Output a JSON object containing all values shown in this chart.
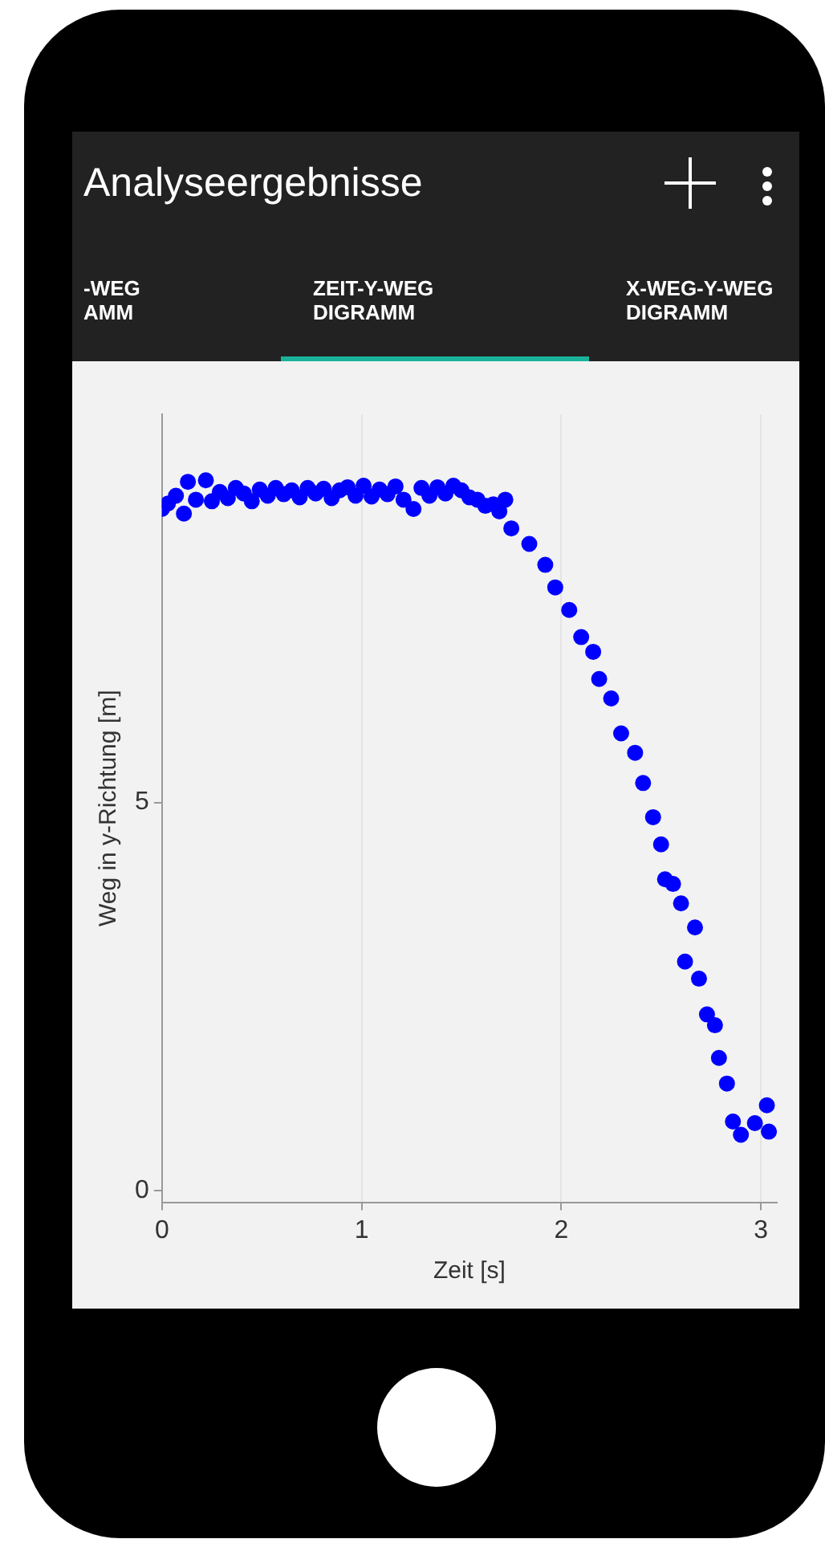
{
  "chart_data": {
    "type": "scatter",
    "title": "Analyseergebnisse",
    "annotations": [
      "-WEG\nAMM",
      "ZEIT-Y-WEG\nDIGRAMM",
      "X-WEG-Y-WEG\nDIGRAMM"
    ],
    "xlabel": "Zeit [s]",
    "ylabel": "Weg in y-Richtung [m]",
    "xlim": [
      0,
      3.08
    ],
    "xticks": [
      0,
      1,
      2,
      3
    ],
    "ylim": [
      -0.15,
      10
    ],
    "yticks": [
      0,
      5
    ],
    "grid": "x",
    "legend": false,
    "marker": "circle",
    "series": [
      {
        "color": "#0000ff",
        "x": [
          0.0,
          0.03,
          0.07,
          0.11,
          0.13,
          0.17,
          0.22,
          0.25,
          0.29,
          0.33,
          0.37,
          0.41,
          0.45,
          0.49,
          0.53,
          0.57,
          0.61,
          0.65,
          0.69,
          0.73,
          0.77,
          0.81,
          0.85,
          0.89,
          0.93,
          0.97,
          1.01,
          1.05,
          1.09,
          1.13,
          1.17,
          1.21,
          1.26,
          1.3,
          1.34,
          1.38,
          1.42,
          1.46,
          1.5,
          1.54,
          1.58,
          1.62,
          1.66,
          1.69,
          1.72,
          1.75,
          1.84,
          1.92,
          1.97,
          2.04,
          2.1,
          2.16,
          2.19,
          2.25,
          2.3,
          2.37,
          2.41,
          2.46,
          2.5,
          2.52,
          2.56,
          2.6,
          2.62,
          2.67,
          2.69,
          2.73,
          2.77,
          2.79,
          2.83,
          2.86,
          2.9,
          2.97,
          3.03,
          3.04
        ],
        "values": [
          8.78,
          8.85,
          8.95,
          8.72,
          9.13,
          8.9,
          9.15,
          8.88,
          9.0,
          8.92,
          9.05,
          8.98,
          8.88,
          9.03,
          8.95,
          9.05,
          8.97,
          9.02,
          8.93,
          9.05,
          8.98,
          9.04,
          8.92,
          9.02,
          9.06,
          8.95,
          9.08,
          8.94,
          9.03,
          8.97,
          9.07,
          8.9,
          8.78,
          9.05,
          8.95,
          9.06,
          8.98,
          9.08,
          9.02,
          8.93,
          8.9,
          8.82,
          8.84,
          8.75,
          8.9,
          8.53,
          8.33,
          8.06,
          7.77,
          7.48,
          7.13,
          6.94,
          6.59,
          6.34,
          5.89,
          5.64,
          5.25,
          4.81,
          4.46,
          4.01,
          3.95,
          3.7,
          2.95,
          3.39,
          2.73,
          2.27,
          2.13,
          1.71,
          1.38,
          0.89,
          0.72,
          0.87,
          1.1,
          0.76
        ]
      }
    ]
  }
}
